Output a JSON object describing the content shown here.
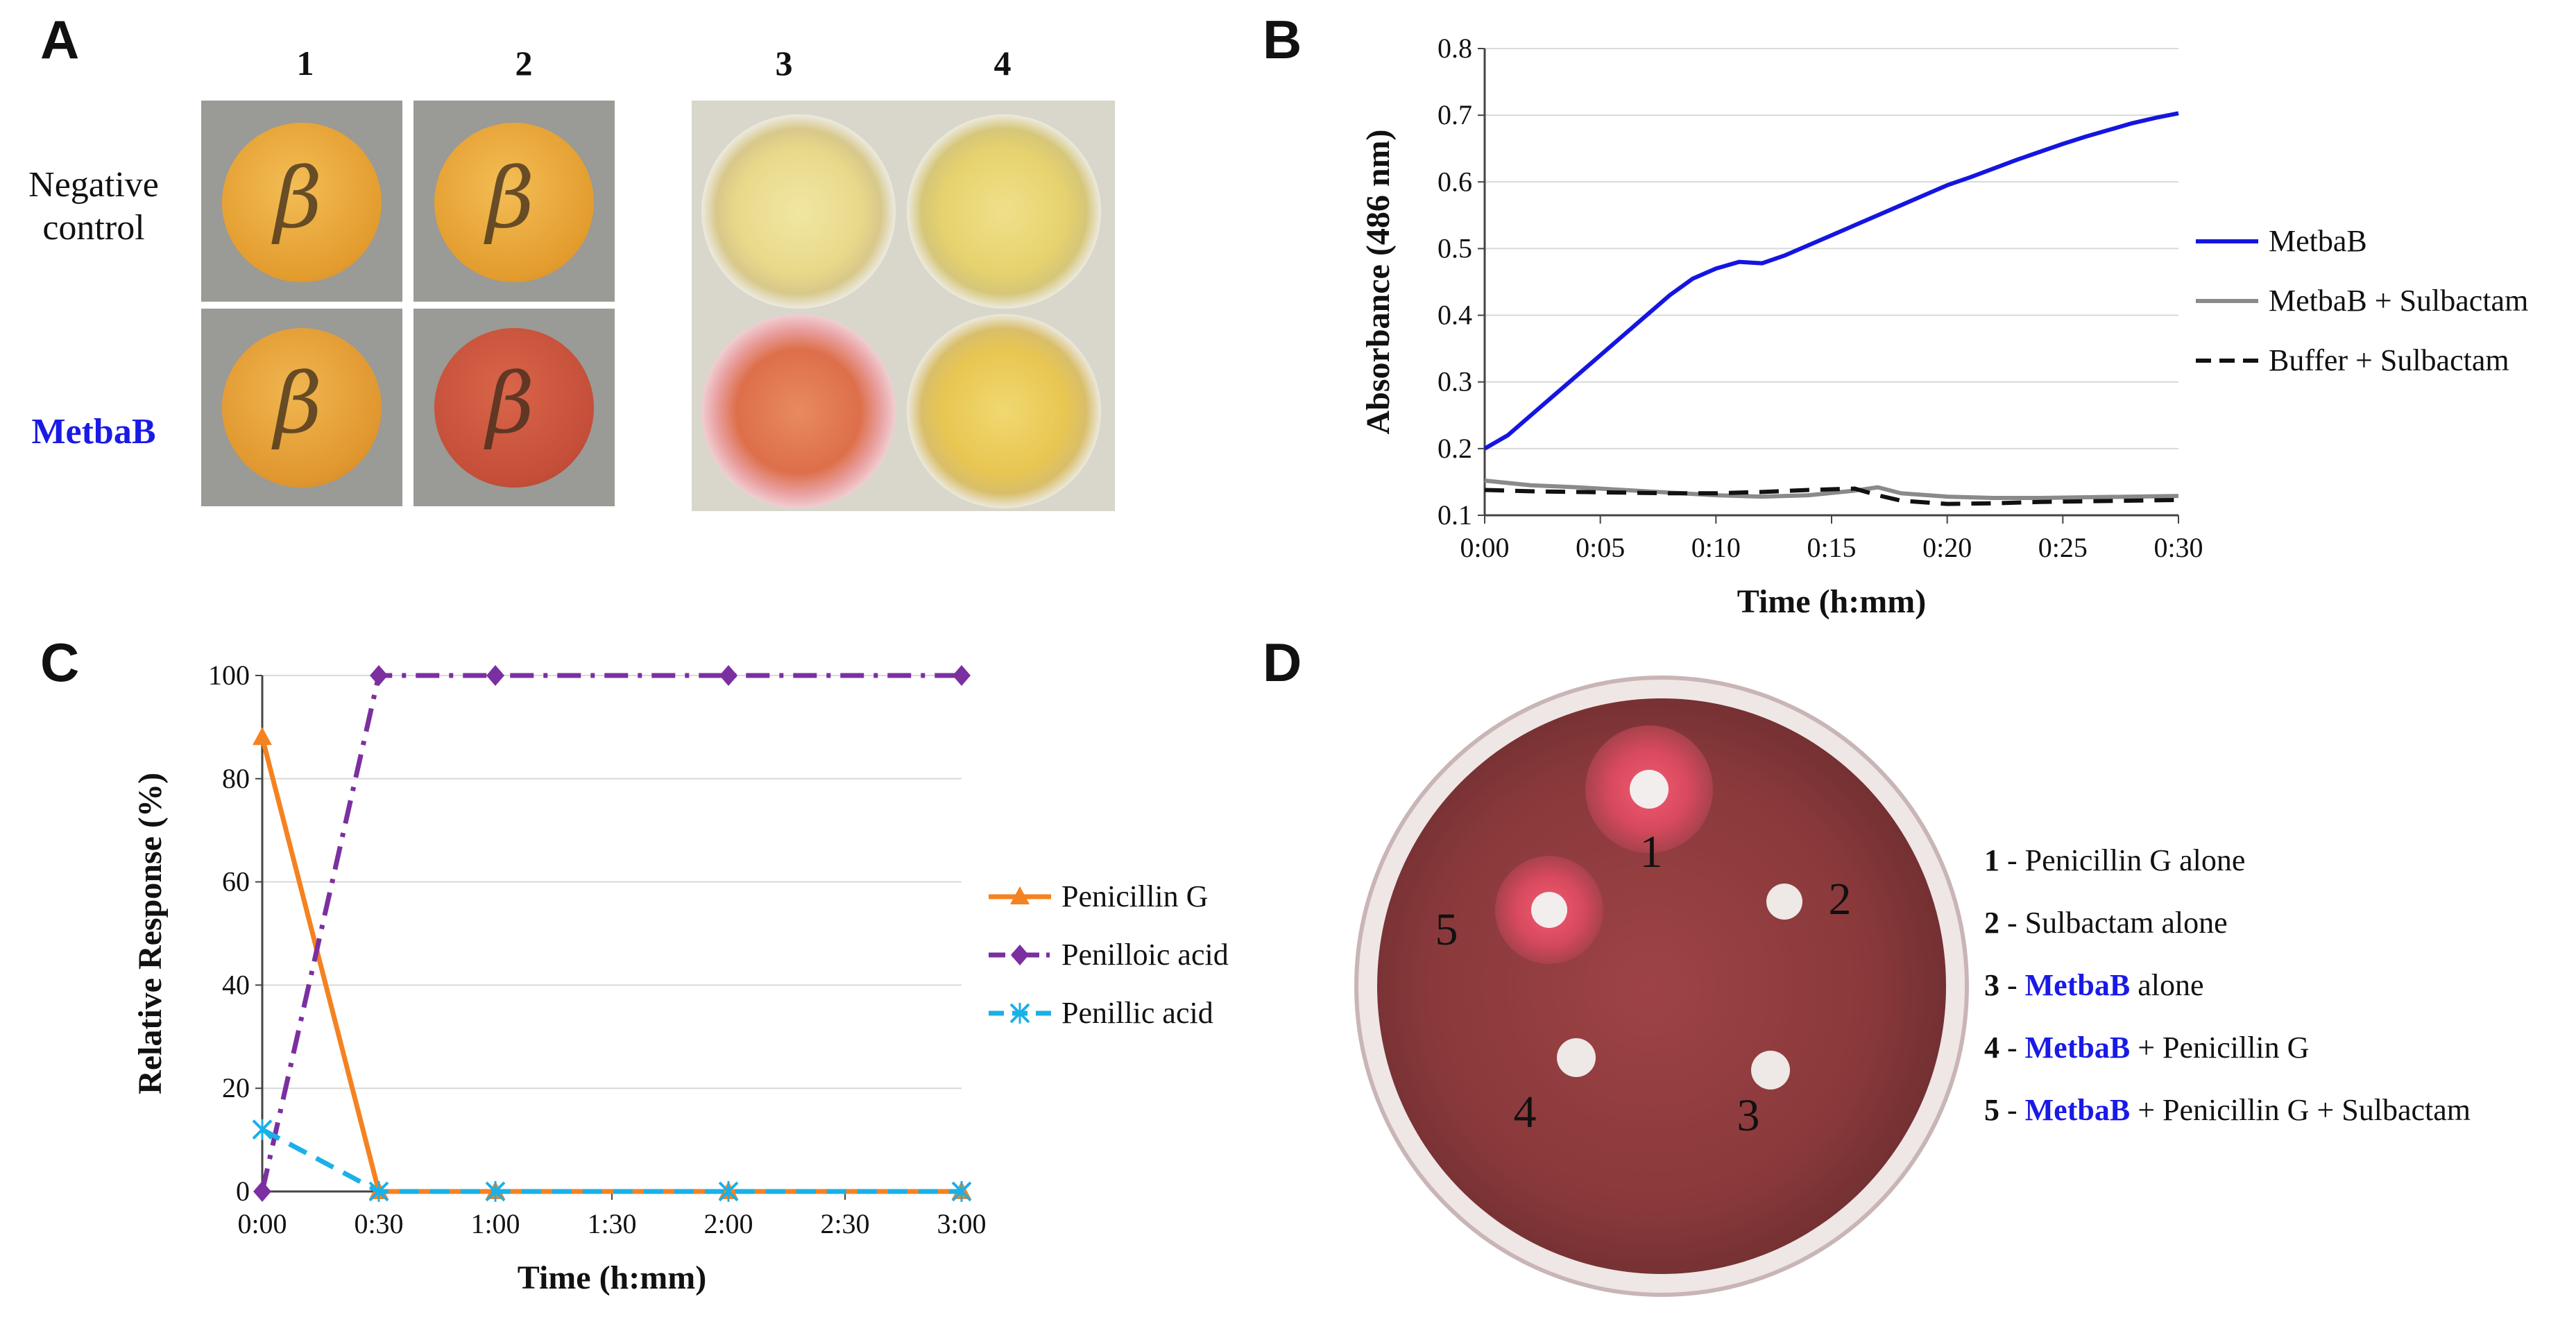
{
  "panels": {
    "a": {
      "letter": "A",
      "col_labels": [
        "1",
        "2",
        "3",
        "4"
      ],
      "row_labels": {
        "negative_line1": "Negative",
        "negative_line2": "control",
        "metbab": "MetbaB"
      },
      "disc_symbol": "β",
      "colors": {
        "disc_yellow": "#e8a53a",
        "disc_red": "#c9503a",
        "well_yellow": "#e8d98a",
        "well_red": "#e07a55"
      }
    },
    "b": {
      "letter": "B"
    },
    "c": {
      "letter": "C"
    },
    "d": {
      "letter": "D",
      "disc_labels": [
        "1",
        "2",
        "3",
        "4",
        "5"
      ],
      "legend": [
        {
          "num": "1",
          "prefix": " - ",
          "name": "",
          "rest": "Penicillin G alone"
        },
        {
          "num": "2",
          "prefix": " - ",
          "name": "",
          "rest": "Sulbactam alone"
        },
        {
          "num": "3",
          "prefix": " - ",
          "name": "MetbaB",
          "rest": " alone"
        },
        {
          "num": "4",
          "prefix": " - ",
          "name": "MetbaB",
          "rest": " + Penicillin G"
        },
        {
          "num": "5",
          "prefix": " - ",
          "name": "MetbaB",
          "rest": " + Penicillin G + Sulbactam"
        }
      ],
      "colors": {
        "agar": "#8e3b3c",
        "halo": "#d4505f",
        "rim": "#d8c0c0"
      }
    }
  },
  "chart_data": [
    {
      "id": "B",
      "type": "line",
      "title": "",
      "xlabel": "Time (h:mm)",
      "ylabel": "Absorbance (486 nm)",
      "x_tick_labels": [
        "0:00",
        "0:05",
        "0:10",
        "0:15",
        "0:20",
        "0:25",
        "0:30"
      ],
      "x_ticks_min": [
        0,
        5,
        10,
        15,
        20,
        25,
        30
      ],
      "xlim": [
        0,
        30
      ],
      "y_tick_labels": [
        "0.1",
        "0.2",
        "0.3",
        "0.4",
        "0.5",
        "0.6",
        "0.7",
        "0.8"
      ],
      "y_ticks": [
        0.1,
        0.2,
        0.3,
        0.4,
        0.5,
        0.6,
        0.7,
        0.8
      ],
      "ylim": [
        0.1,
        0.8
      ],
      "grid": true,
      "legend_position": "right",
      "series": [
        {
          "name": "MetbaB",
          "color": "#1515e0",
          "dash": "solid",
          "x": [
            0,
            1,
            2,
            3,
            4,
            5,
            6,
            7,
            8,
            9,
            10,
            11,
            12,
            13,
            14,
            15,
            16,
            17,
            18,
            19,
            20,
            21,
            22,
            23,
            24,
            25,
            26,
            27,
            28,
            29,
            30
          ],
          "y": [
            0.2,
            0.22,
            0.25,
            0.28,
            0.31,
            0.34,
            0.37,
            0.4,
            0.43,
            0.455,
            0.47,
            0.48,
            0.478,
            0.49,
            0.505,
            0.52,
            0.535,
            0.55,
            0.565,
            0.58,
            0.595,
            0.607,
            0.62,
            0.633,
            0.645,
            0.657,
            0.668,
            0.678,
            0.688,
            0.696,
            0.703
          ]
        },
        {
          "name": "MetbaB + Sulbactam",
          "color": "#8a8a8a",
          "dash": "solid",
          "x": [
            0,
            2,
            4,
            6,
            8,
            10,
            12,
            14,
            16,
            17,
            18,
            20,
            22,
            24,
            26,
            28,
            30
          ],
          "y": [
            0.152,
            0.145,
            0.142,
            0.138,
            0.134,
            0.13,
            0.128,
            0.13,
            0.137,
            0.142,
            0.133,
            0.128,
            0.126,
            0.126,
            0.127,
            0.128,
            0.129
          ]
        },
        {
          "name": "Buffer + Sulbactam",
          "color": "#111111",
          "dash": "dashed",
          "x": [
            0,
            2,
            4,
            6,
            8,
            10,
            12,
            14,
            16,
            17,
            18,
            20,
            22,
            24,
            26,
            28,
            30
          ],
          "y": [
            0.138,
            0.136,
            0.135,
            0.134,
            0.133,
            0.133,
            0.135,
            0.138,
            0.14,
            0.13,
            0.122,
            0.117,
            0.118,
            0.12,
            0.121,
            0.122,
            0.123
          ]
        }
      ]
    },
    {
      "id": "C",
      "type": "line",
      "title": "",
      "xlabel": "Time (h:mm)",
      "ylabel": "Relative Response (%)",
      "x_tick_labels": [
        "0:00",
        "0:30",
        "1:00",
        "1:30",
        "2:00",
        "2:30",
        "3:00"
      ],
      "x_ticks_min": [
        0,
        30,
        60,
        90,
        120,
        150,
        180
      ],
      "xlim": [
        0,
        180
      ],
      "y_tick_labels": [
        "0",
        "20",
        "40",
        "60",
        "80",
        "100"
      ],
      "y_ticks": [
        0,
        20,
        40,
        60,
        80,
        100
      ],
      "ylim": [
        0,
        100
      ],
      "grid": true,
      "legend_position": "right",
      "series": [
        {
          "name": "Penicillin G",
          "color": "#f58220",
          "dash": "solid",
          "marker": "triangle",
          "x": [
            0,
            30,
            60,
            120,
            180
          ],
          "y": [
            88,
            0,
            0,
            0,
            0
          ]
        },
        {
          "name": "Penilloic acid",
          "color": "#7b2fa0",
          "dash": "dashdot",
          "marker": "diamond",
          "x": [
            0,
            30,
            60,
            120,
            180
          ],
          "y": [
            0,
            100,
            100,
            100,
            100
          ]
        },
        {
          "name": "Penillic acid",
          "color": "#1ab0e8",
          "dash": "dashed",
          "marker": "star",
          "x": [
            0,
            30,
            60,
            120,
            180
          ],
          "y": [
            12,
            0,
            0,
            0,
            0
          ]
        }
      ]
    }
  ]
}
